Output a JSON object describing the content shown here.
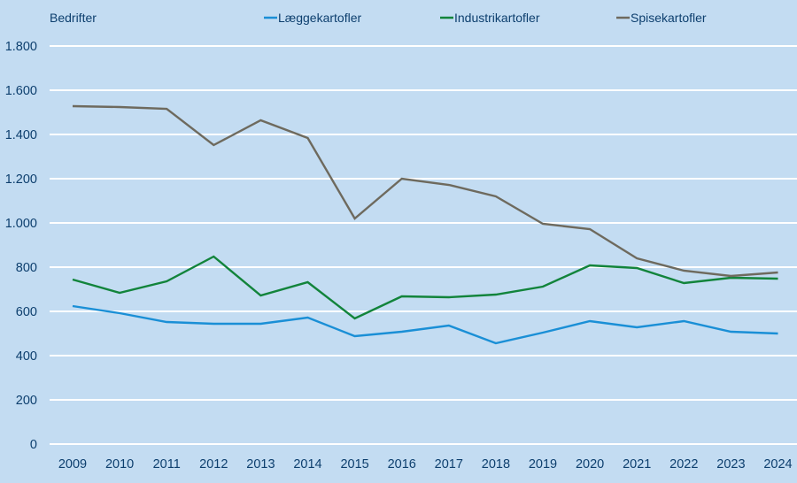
{
  "chart_data": {
    "type": "line",
    "title": "",
    "xlabel": "",
    "ylabel": "Bedrifter",
    "categories": [
      "2009",
      "2010",
      "2011",
      "2012",
      "2013",
      "2014",
      "2015",
      "2016",
      "2017",
      "2018",
      "2019",
      "2020",
      "2021",
      "2022",
      "2023",
      "2024"
    ],
    "ylim": [
      0,
      1800
    ],
    "yticks": [
      0,
      200,
      400,
      600,
      800,
      1000,
      1200,
      1400,
      1600,
      1800
    ],
    "ytick_labels": [
      "0",
      "200",
      "400",
      "600",
      "800",
      "1.000",
      "1.200",
      "1.400",
      "1.600",
      "1.800"
    ],
    "grid": true,
    "legend_position": "top",
    "series": [
      {
        "name": "Læggekartofler",
        "color": "#1a8fd6",
        "values": [
          624,
          592,
          552,
          544,
          544,
          572,
          488,
          508,
          536,
          456,
          504,
          556,
          528,
          556,
          508,
          500
        ]
      },
      {
        "name": "Industrikartofler",
        "color": "#12843b",
        "values": [
          744,
          684,
          736,
          848,
          672,
          732,
          568,
          668,
          664,
          676,
          712,
          808,
          796,
          728,
          752,
          748
        ]
      },
      {
        "name": "Spisekartofler",
        "color": "#6e6a5e",
        "values": [
          1528,
          1524,
          1516,
          1352,
          1464,
          1384,
          1020,
          1200,
          1172,
          1120,
          996,
          972,
          840,
          784,
          760,
          776
        ]
      }
    ]
  },
  "colors": {
    "background": "#c3dcf2",
    "gridline": "#ffffff",
    "text": "#0d3f6e"
  }
}
